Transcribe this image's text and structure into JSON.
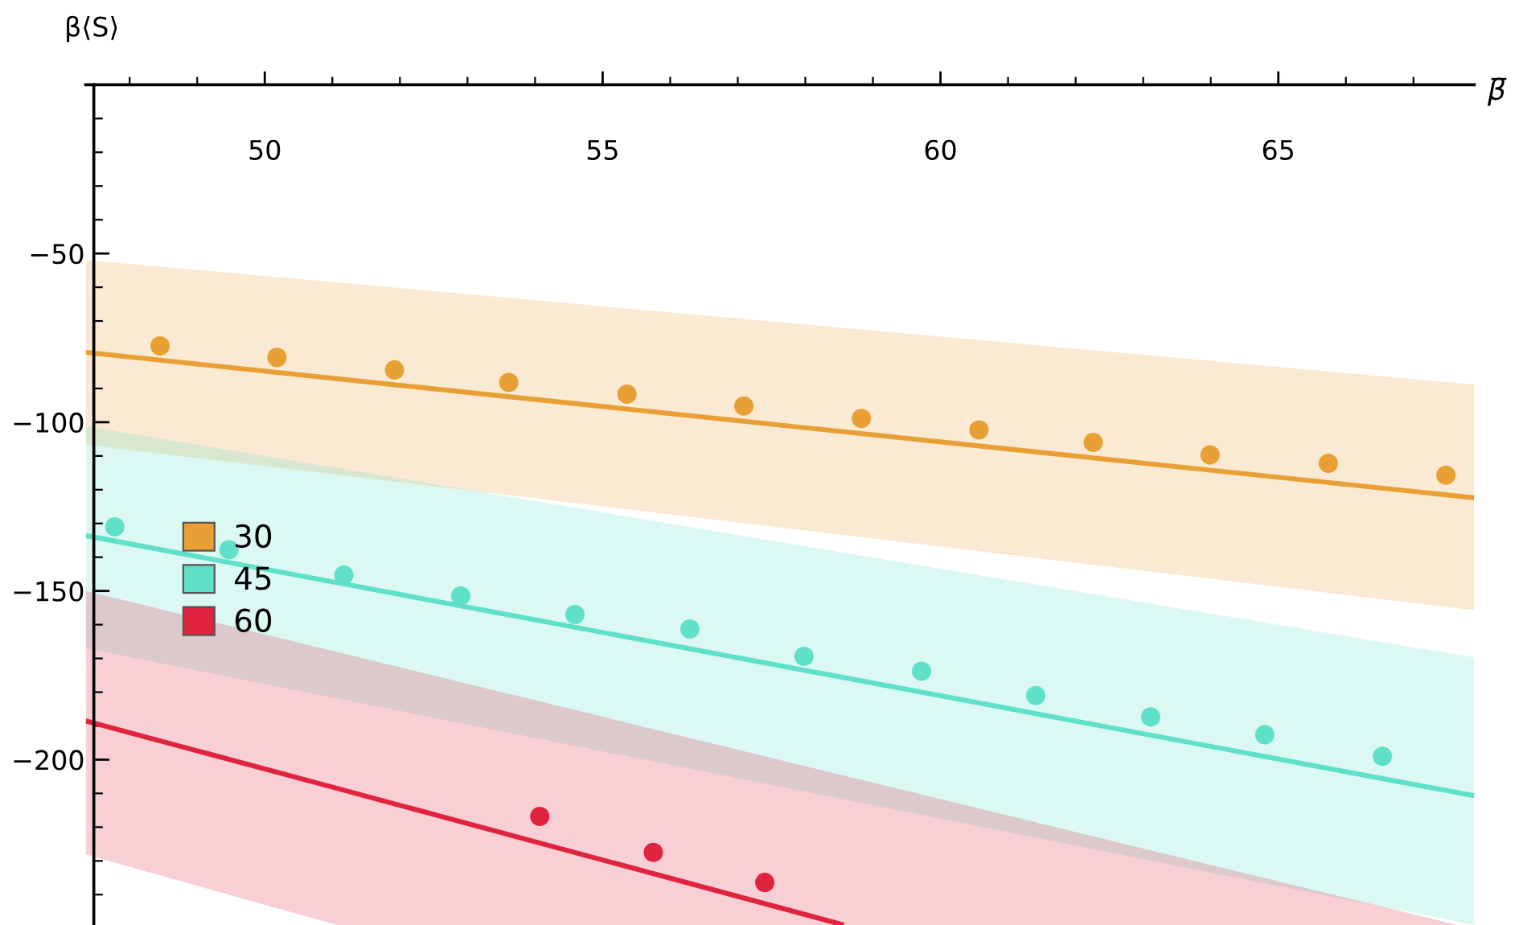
{
  "chart_data": {
    "type": "scatter",
    "xlabel": "β̅",
    "ylabel": "β⟨S⟩",
    "xlim": [
      47.35,
      67.9
    ],
    "ylim": [
      -249,
      0
    ],
    "xticks": [
      {
        "value": 48,
        "label": null
      },
      {
        "value": 49,
        "label": null
      },
      50,
      {
        "value": 51,
        "label": null
      },
      {
        "value": 52,
        "label": null
      },
      {
        "value": 53,
        "label": null
      },
      {
        "value": 54,
        "label": null
      },
      55,
      {
        "value": 56,
        "label": null
      },
      {
        "value": 57,
        "label": null
      },
      {
        "value": 58,
        "label": null
      },
      {
        "value": 59,
        "label": null
      },
      60,
      {
        "value": 61,
        "label": null
      },
      {
        "value": 62,
        "label": null
      },
      {
        "value": 63,
        "label": null
      },
      {
        "value": 64,
        "label": null
      },
      65,
      {
        "value": 66,
        "label": null
      },
      {
        "value": 67,
        "label": null
      }
    ],
    "yticks": [
      {
        "value": -10,
        "label": null
      },
      {
        "value": -20,
        "label": null
      },
      {
        "value": -30,
        "label": null
      },
      {
        "value": -40,
        "label": null
      },
      {
        "value": -50,
        "label": "−50"
      },
      {
        "value": -60,
        "label": null
      },
      {
        "value": -70,
        "label": null
      },
      {
        "value": -80,
        "label": null
      },
      {
        "value": -90,
        "label": null
      },
      {
        "value": -100,
        "label": "−100"
      },
      {
        "value": -110,
        "label": null
      },
      {
        "value": -120,
        "label": null
      },
      {
        "value": -130,
        "label": null
      },
      {
        "value": -140,
        "label": null
      },
      {
        "value": -150,
        "label": "−150"
      },
      {
        "value": -160,
        "label": null
      },
      {
        "value": -170,
        "label": null
      },
      {
        "value": -180,
        "label": null
      },
      {
        "value": -190,
        "label": null
      },
      {
        "value": -200,
        "label": "−200"
      },
      {
        "value": -210,
        "label": null
      },
      {
        "value": -220,
        "label": null
      },
      {
        "value": -230,
        "label": null
      },
      {
        "value": -240,
        "label": null
      }
    ],
    "grid": false,
    "legend": "left",
    "marker": "circle",
    "series": [
      {
        "type": "line",
        "marker": "none",
        "color": "#e8a035",
        "x": [
          47.35,
          67.9
        ],
        "values": [
          -79.3,
          -122.4
        ],
        "upper": [
          -51.9,
          -88.8
        ],
        "lower": [
          -106.7,
          -155.7
        ]
      },
      {
        "type": "line",
        "marker": "none",
        "color": "#5fe0c8",
        "x": [
          47.35,
          67.9
        ],
        "values": [
          -133.6,
          -210.7
        ],
        "upper": [
          -101.2,
          -169.7
        ],
        "lower": [
          -167,
          -249
        ]
      },
      {
        "type": "line",
        "marker": "none",
        "color": "#e0243f",
        "x": [
          47.35,
          51.07,
          58.57,
          67.65
        ],
        "values": [
          -188.5,
          -208.5,
          -249,
          null
        ],
        "upper": [
          -150,
          -168.1,
          -204.7,
          -249
        ],
        "lower": [
          -228.1,
          -249,
          -249,
          -249
        ]
      },
      {
        "name": "30",
        "color": "#e8a035",
        "x": [
          48.45,
          50.18,
          51.92,
          53.61,
          55.36,
          57.09,
          58.83,
          60.57,
          62.26,
          63.99,
          65.74,
          67.48
        ],
        "values": [
          -77.4,
          -80.8,
          -84.5,
          -88.2,
          -91.7,
          -95.2,
          -98.9,
          -102.3,
          -106.0,
          -109.7,
          -112.2,
          -115.7
        ]
      },
      {
        "name": "45",
        "color": "#5fe0c8",
        "x": [
          47.78,
          49.47,
          51.17,
          52.9,
          54.59,
          56.29,
          57.98,
          59.72,
          61.41,
          63.11,
          64.8,
          66.54
        ],
        "values": [
          -131.0,
          -137.8,
          -145.3,
          -151.5,
          -157.0,
          -161.3,
          -169.4,
          -173.8,
          -181.0,
          -187.3,
          -192.6,
          -199.0
        ]
      },
      {
        "name": "60",
        "color": "#e0243f",
        "x": [
          54.07,
          55.75,
          57.4
        ],
        "values": [
          -216.8,
          -227.5,
          -236.4
        ]
      }
    ]
  }
}
